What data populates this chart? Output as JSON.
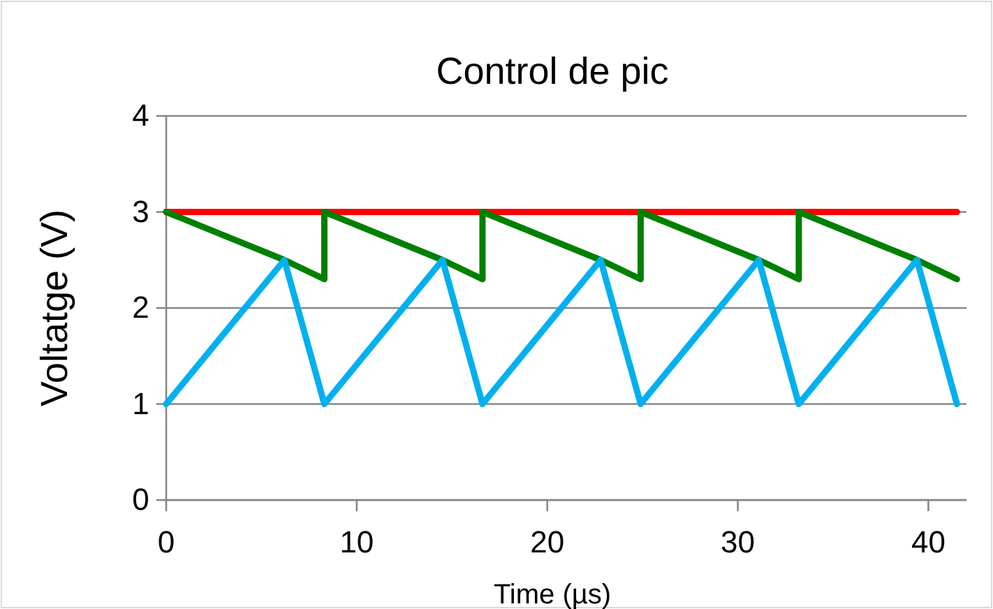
{
  "chart_data": {
    "type": "line",
    "title": "Control de pic",
    "xlabel": "Time (µs)",
    "ylabel": "Voltatge (V)",
    "xlim": [
      0,
      42
    ],
    "xticks": [
      0,
      10,
      20,
      30,
      40
    ],
    "ylim": [
      0,
      4
    ],
    "yticks": [
      0,
      1,
      2,
      3,
      4
    ],
    "grid": "y",
    "marker": "none",
    "line_style": "solid",
    "series": [
      {
        "color": "#ff0000",
        "x": [
          0,
          41.5
        ],
        "values": [
          3,
          3
        ]
      },
      {
        "color": "#008000",
        "x": [
          0,
          6.2,
          8.3,
          8.3,
          14.5,
          16.6,
          16.6,
          22.8,
          24.9,
          24.9,
          31.1,
          33.2,
          33.2,
          39.4,
          41.5
        ],
        "values": [
          3,
          2.5,
          2.3,
          3,
          2.5,
          2.3,
          3,
          2.5,
          2.3,
          3,
          2.5,
          2.3,
          3,
          2.5,
          2.3
        ]
      },
      {
        "color": "#00b0f0",
        "x": [
          0,
          6.2,
          8.3,
          14.5,
          16.6,
          22.8,
          24.9,
          31.1,
          33.2,
          39.4,
          41.5
        ],
        "values": [
          1,
          2.5,
          1,
          2.5,
          1,
          2.5,
          1,
          2.5,
          1,
          2.5,
          1
        ]
      }
    ]
  }
}
